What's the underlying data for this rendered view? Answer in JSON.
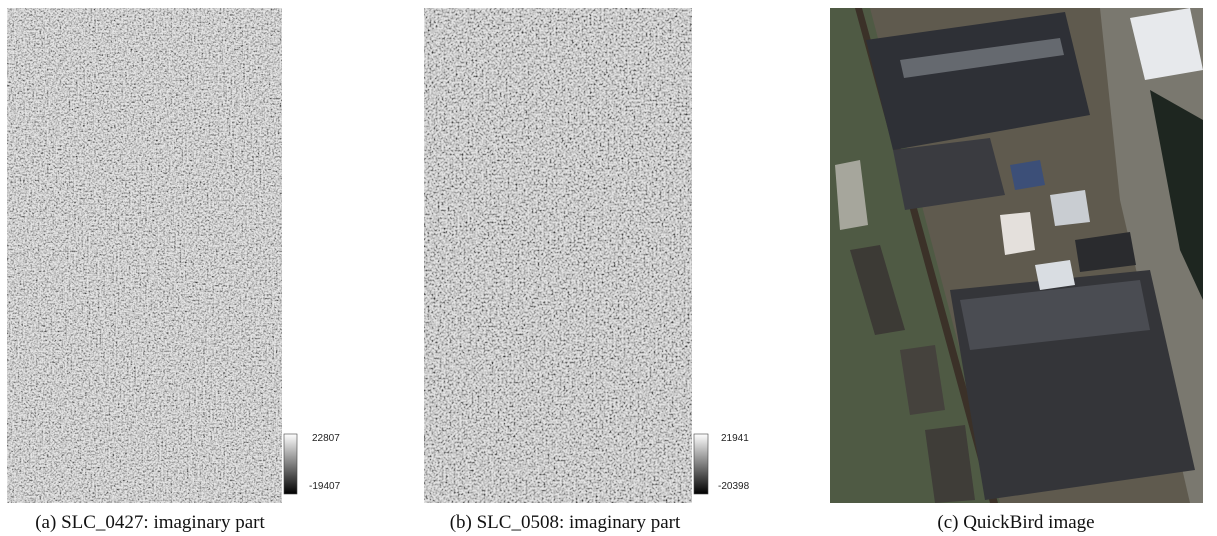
{
  "panels": [
    {
      "caption": "(a) SLC_0427: imaginary part",
      "colorbar": {
        "max": 22807,
        "min": -19407
      }
    },
    {
      "caption": "(b) SLC_0508: imaginary part",
      "colorbar": {
        "max": 21941,
        "min": -20398
      }
    },
    {
      "caption": "(c) QuickBird image"
    }
  ]
}
